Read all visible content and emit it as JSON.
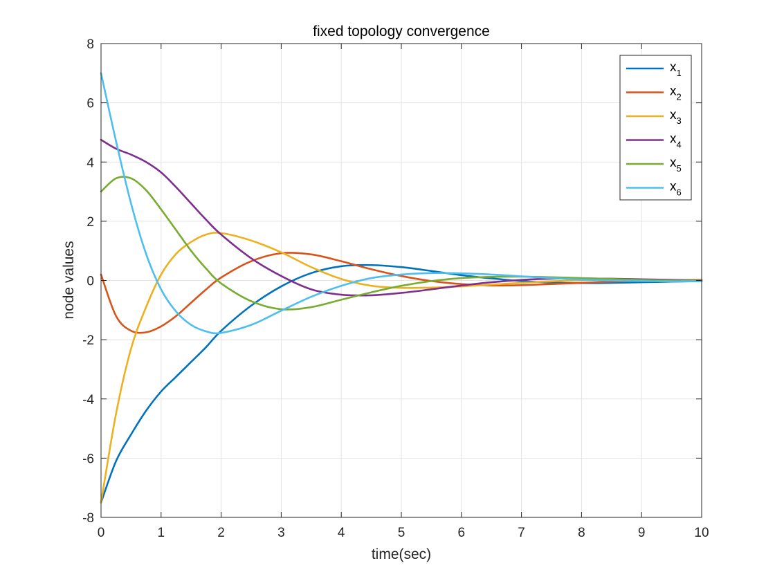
{
  "chart_data": {
    "type": "line",
    "title": "fixed topology convergence",
    "xlabel": "time(sec)",
    "ylabel": "node values",
    "xlim": [
      0,
      10
    ],
    "ylim": [
      -8,
      8
    ],
    "xticks": [
      "0",
      "1",
      "2",
      "3",
      "4",
      "5",
      "6",
      "7",
      "8",
      "9",
      "10"
    ],
    "yticks": [
      "-8",
      "-6",
      "-4",
      "-2",
      "0",
      "2",
      "4",
      "6",
      "8"
    ],
    "grid": true,
    "legend_position": "top-right",
    "x": [
      0,
      0.25,
      0.5,
      0.75,
      1,
      1.25,
      1.5,
      1.75,
      2,
      2.5,
      3,
      3.5,
      4,
      4.5,
      5,
      5.5,
      6,
      6.5,
      7,
      7.5,
      8,
      8.5,
      9,
      9.5,
      10
    ],
    "series": [
      {
        "name": "x",
        "sub": "1",
        "color": "#0072BD",
        "values": [
          -7.5,
          -6.1,
          -5.2,
          -4.4,
          -3.75,
          -3.25,
          -2.75,
          -2.25,
          -1.7,
          -0.85,
          -0.2,
          0.25,
          0.48,
          0.52,
          0.45,
          0.32,
          0.18,
          0.07,
          -0.02,
          -0.07,
          -0.09,
          -0.08,
          -0.06,
          -0.04,
          -0.02
        ]
      },
      {
        "name": "x",
        "sub": "2",
        "color": "#D95319",
        "values": [
          0.2,
          -1.2,
          -1.7,
          -1.75,
          -1.55,
          -1.2,
          -0.75,
          -0.3,
          0.1,
          0.65,
          0.92,
          0.88,
          0.65,
          0.38,
          0.15,
          -0.02,
          -0.12,
          -0.17,
          -0.16,
          -0.12,
          -0.08,
          -0.04,
          -0.01,
          0.01,
          0.02
        ]
      },
      {
        "name": "x",
        "sub": "3",
        "color": "#EDB120",
        "values": [
          -7.5,
          -4.5,
          -2.3,
          -0.9,
          0.2,
          0.9,
          1.3,
          1.55,
          1.6,
          1.35,
          0.95,
          0.45,
          0.05,
          -0.18,
          -0.25,
          -0.24,
          -0.2,
          -0.14,
          -0.08,
          -0.03,
          0.01,
          0.03,
          0.03,
          0.02,
          0.01
        ]
      },
      {
        "name": "x",
        "sub": "4",
        "color": "#7E2F8E",
        "values": [
          4.75,
          4.45,
          4.25,
          4.0,
          3.65,
          3.15,
          2.6,
          2.05,
          1.55,
          0.75,
          0.15,
          -0.3,
          -0.48,
          -0.5,
          -0.42,
          -0.3,
          -0.17,
          -0.06,
          0.02,
          0.06,
          0.07,
          0.06,
          0.04,
          0.02,
          0.0
        ]
      },
      {
        "name": "x",
        "sub": "5",
        "color": "#77AC30",
        "values": [
          3.0,
          3.45,
          3.45,
          3.05,
          2.4,
          1.7,
          1.0,
          0.4,
          -0.1,
          -0.7,
          -0.97,
          -0.9,
          -0.65,
          -0.4,
          -0.18,
          -0.02,
          0.08,
          0.12,
          0.13,
          0.11,
          0.08,
          0.05,
          0.02,
          0.0,
          -0.01
        ]
      },
      {
        "name": "x",
        "sub": "6",
        "color": "#4DBEEE",
        "values": [
          7.0,
          4.7,
          2.6,
          0.9,
          -0.3,
          -1.05,
          -1.5,
          -1.72,
          -1.77,
          -1.5,
          -1.02,
          -0.55,
          -0.18,
          0.08,
          0.2,
          0.25,
          0.24,
          0.2,
          0.14,
          0.08,
          0.03,
          0.0,
          -0.02,
          -0.03,
          -0.03
        ]
      }
    ]
  }
}
